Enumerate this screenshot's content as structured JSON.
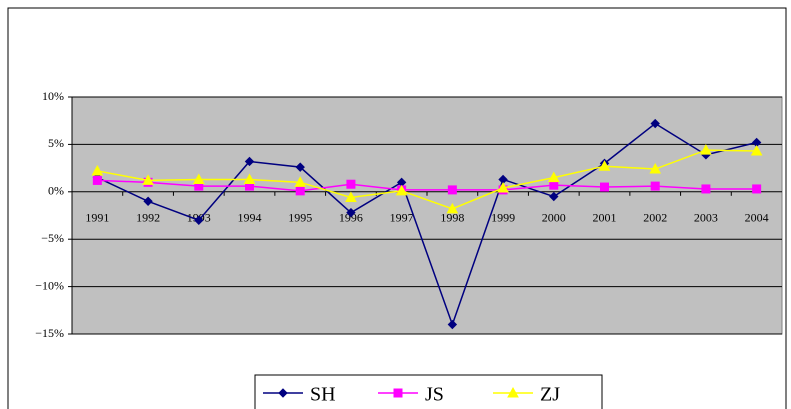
{
  "chart_data": {
    "type": "line",
    "categories": [
      "1991",
      "1992",
      "1993",
      "1994",
      "1995",
      "1996",
      "1997",
      "1998",
      "1999",
      "2000",
      "2001",
      "2002",
      "2003",
      "2004"
    ],
    "series": [
      {
        "name": "SH",
        "color": "#000080",
        "marker": "diamond",
        "values": [
          1.5,
          -1,
          -3,
          3.2,
          2.6,
          -2.2,
          1,
          -14,
          1.3,
          -0.5,
          3,
          7.2,
          3.9,
          5.2
        ]
      },
      {
        "name": "JS",
        "color": "#FF00FF",
        "marker": "square",
        "values": [
          1.2,
          1.0,
          0.6,
          0.6,
          0.1,
          0.8,
          0.2,
          0.2,
          0.2,
          0.7,
          0.5,
          0.6,
          0.3,
          0.3
        ]
      },
      {
        "name": "ZJ",
        "color": "#FFFF00",
        "marker": "triangle",
        "values": [
          2.2,
          1.2,
          1.3,
          1.3,
          1.0,
          -0.6,
          0.1,
          -1.8,
          0.4,
          1.5,
          2.7,
          2.4,
          4.4,
          4.3
        ]
      }
    ],
    "ylim": [
      -15,
      10
    ],
    "yticks": [
      {
        "value": -15,
        "label": "−15%"
      },
      {
        "value": -10,
        "label": "−10%"
      },
      {
        "value": -5,
        "label": "−5%"
      },
      {
        "value": 0,
        "label": "0%"
      },
      {
        "value": 5,
        "label": "5%"
      },
      {
        "value": 10,
        "label": "10%"
      }
    ],
    "grid": true,
    "legend": "bottom"
  }
}
